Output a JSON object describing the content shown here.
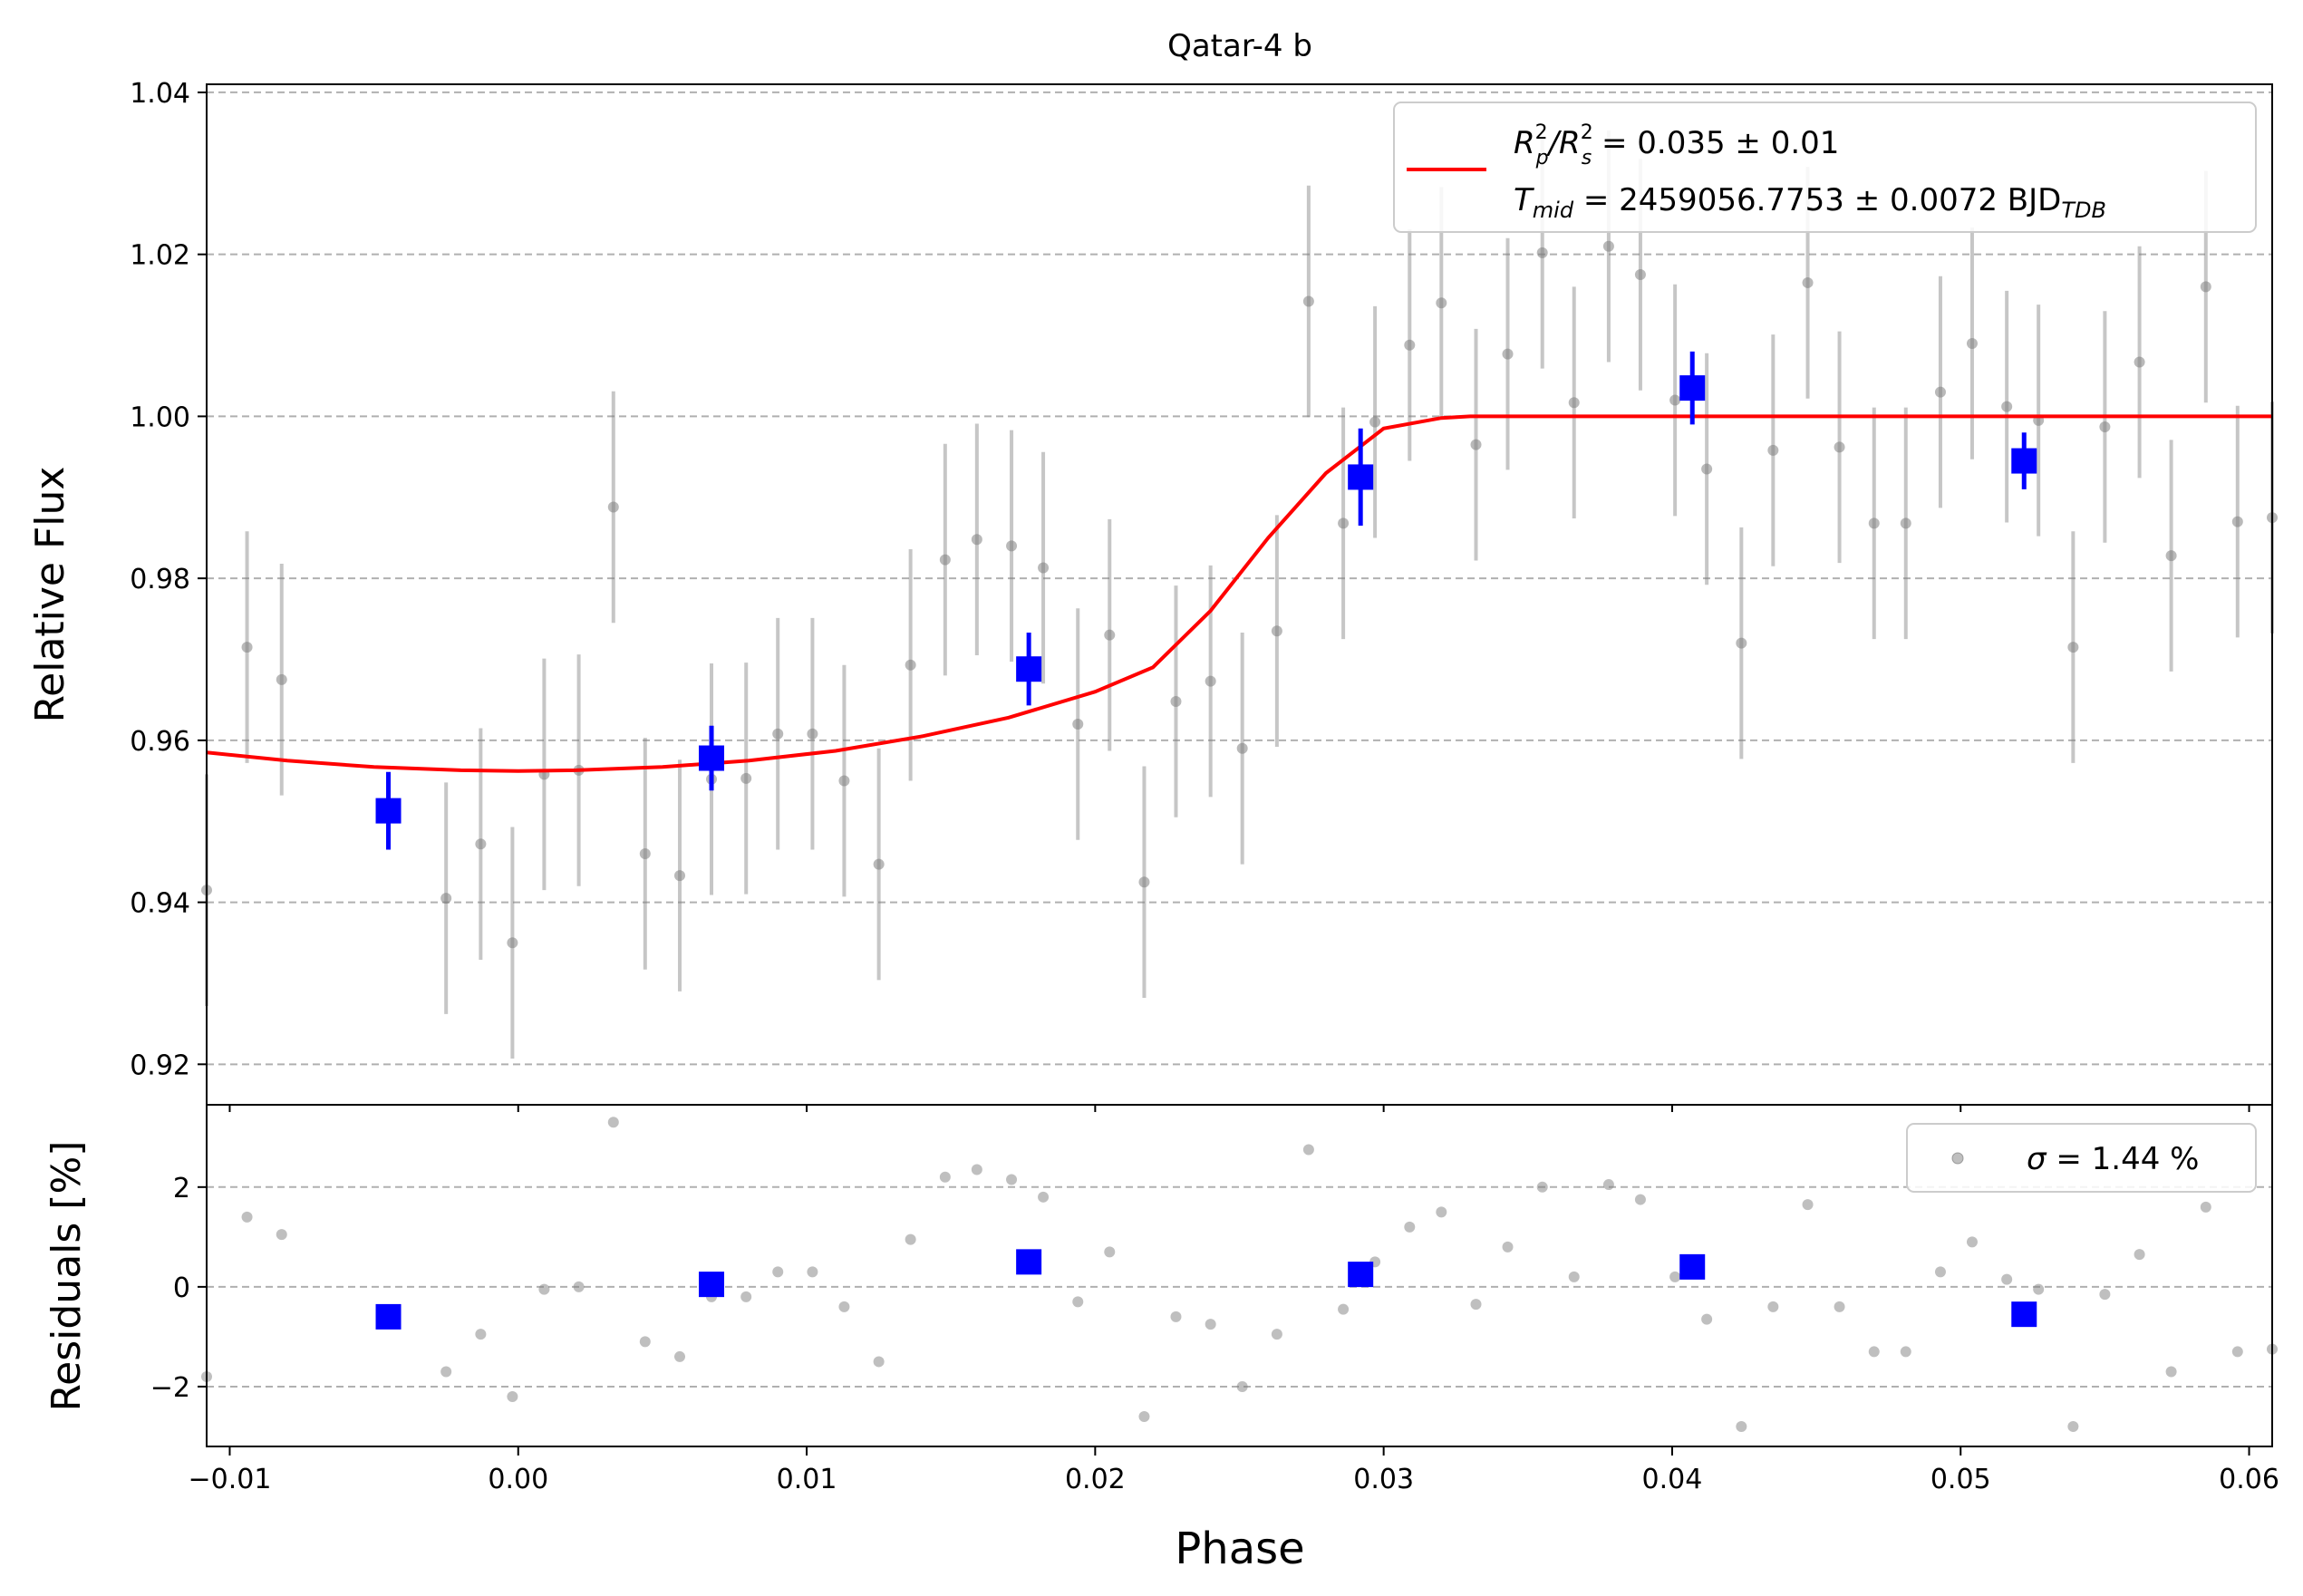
{
  "chart_data": [
    {
      "type": "scatter",
      "title": "Qatar-4 b",
      "xlabel": "Phase",
      "ylabel": "Relative Flux",
      "xlim": [
        -0.0108,
        0.0608
      ],
      "ylim": [
        0.915,
        1.041
      ],
      "grid": "horizontal dashed",
      "legend_position": "top-right",
      "x_ticks": [
        -0.01,
        0.0,
        0.01,
        0.02,
        0.03,
        0.04,
        0.05,
        0.06
      ],
      "x_tick_labels": [
        "−0.01",
        "0.00",
        "0.01",
        "0.02",
        "0.03",
        "0.04",
        "0.05",
        "0.06"
      ],
      "y_ticks": [
        0.92,
        0.94,
        0.96,
        0.98,
        1.0,
        1.02,
        1.04
      ],
      "y_tick_labels": [
        "0.92",
        "0.94",
        "0.96",
        "0.98",
        "1.00",
        "1.02",
        "1.04"
      ],
      "legend": {
        "line1_prefix": "R",
        "line1_sup1": "2",
        "line1_sub1": "p",
        "line1_mid": "/R",
        "line1_sup2": "2",
        "line1_sub2": "s",
        "line1_suffix": " = 0.035 ± 0.01",
        "line2_prefix": "T",
        "line2_sub": "mid",
        "line2_suffix": " = 2459056.7753 ± 0.0072 BJD",
        "line2_sub2": "TDB"
      },
      "series": [
        {
          "role": "data",
          "color": "#808080",
          "x": [
            -0.0108,
            -0.0094,
            -0.0082,
            -0.0025,
            -0.0013,
            -0.0002,
            0.0009,
            0.0021,
            0.0033,
            0.0044,
            0.0056,
            0.0067,
            0.0079,
            0.009,
            0.0102,
            0.0113,
            0.0125,
            0.0136,
            0.0148,
            0.0159,
            0.0171,
            0.0182,
            0.0194,
            0.0205,
            0.0217,
            0.0228,
            0.024,
            0.0251,
            0.0263,
            0.0274,
            0.0286,
            0.0297,
            0.0309,
            0.032,
            0.0332,
            0.0343,
            0.0355,
            0.0366,
            0.0378,
            0.0389,
            0.0401,
            0.0412,
            0.0424,
            0.0435,
            0.0447,
            0.0458,
            0.047,
            0.0481,
            0.0493,
            0.0504,
            0.0516,
            0.0527,
            0.0539,
            0.055,
            0.0562,
            0.0573,
            0.0585,
            0.0596,
            0.0608
          ],
          "y": [
            0.9415,
            0.9715,
            0.9675,
            0.9405,
            0.9472,
            0.935,
            0.9558,
            0.9563,
            0.9888,
            0.946,
            0.9433,
            0.9552,
            0.9553,
            0.9608,
            0.9608,
            0.955,
            0.9447,
            0.9693,
            0.9823,
            0.9848,
            0.984,
            0.9813,
            0.962,
            0.973,
            0.9425,
            0.9648,
            0.9673,
            0.959,
            0.9735,
            1.0142,
            0.9868,
            0.9993,
            1.0088,
            1.014,
            0.9965,
            1.0077,
            1.0202,
            1.0017,
            1.021,
            1.0175,
            1.002,
            0.9935,
            0.972,
            0.9958,
            1.0165,
            0.9962,
            0.9868,
            0.9868,
            1.003,
            1.009,
            1.0012,
            0.9995,
            0.9715,
            0.9987,
            1.0067,
            0.9828,
            1.016,
            0.987,
            0.9875
          ],
          "yerr": 0.0143
        },
        {
          "role": "binned",
          "color": "#0000ff",
          "x": [
            -0.0045,
            0.0067,
            0.0177,
            0.0292,
            0.0407,
            0.0522
          ],
          "y": [
            0.9513,
            0.9578,
            0.9688,
            0.9925,
            1.0035,
            0.9945
          ],
          "yerr": [
            0.0048,
            0.004,
            0.0045,
            0.006,
            0.0045,
            0.0035
          ]
        },
        {
          "role": "model",
          "color": "#ff0000",
          "x": [
            -0.0108,
            -0.008,
            -0.005,
            -0.002,
            0.0,
            0.002,
            0.005,
            0.008,
            0.011,
            0.014,
            0.017,
            0.02,
            0.022,
            0.024,
            0.026,
            0.028,
            0.03,
            0.032,
            0.033,
            0.0608
          ],
          "y": [
            0.9585,
            0.9575,
            0.9567,
            0.9563,
            0.9562,
            0.9563,
            0.9567,
            0.9575,
            0.9587,
            0.9605,
            0.9628,
            0.966,
            0.969,
            0.976,
            0.985,
            0.993,
            0.9985,
            0.9998,
            1.0,
            1.0
          ]
        }
      ]
    },
    {
      "type": "scatter",
      "xlabel": "Phase",
      "ylabel": "Residuals [%]",
      "xlim": [
        -0.0108,
        0.0608
      ],
      "ylim": [
        -3.2,
        3.65
      ],
      "grid": "horizontal dashed",
      "legend_position": "top-right",
      "y_ticks": [
        -2,
        0,
        2
      ],
      "y_tick_labels": [
        "−2",
        "0",
        "2"
      ],
      "legend": {
        "sigma_symbol": "σ",
        "sigma_text": " = 1.44 %"
      },
      "series": [
        {
          "role": "residuals",
          "color": "#808080",
          "x": [
            -0.0108,
            -0.0094,
            -0.0082,
            -0.0025,
            -0.0013,
            -0.0002,
            0.0009,
            0.0021,
            0.0033,
            0.0044,
            0.0056,
            0.0067,
            0.0079,
            0.009,
            0.0102,
            0.0113,
            0.0125,
            0.0136,
            0.0148,
            0.0159,
            0.0171,
            0.0182,
            0.0194,
            0.0205,
            0.0217,
            0.0228,
            0.024,
            0.0251,
            0.0263,
            0.0274,
            0.0286,
            0.0297,
            0.0309,
            0.032,
            0.0332,
            0.0343,
            0.0355,
            0.0366,
            0.0378,
            0.0389,
            0.0401,
            0.0412,
            0.0424,
            0.0435,
            0.0447,
            0.0458,
            0.047,
            0.0481,
            0.0493,
            0.0504,
            0.0516,
            0.0527,
            0.0539,
            0.055,
            0.0562,
            0.0573,
            0.0585,
            0.0596,
            0.0608
          ],
          "y": [
            -1.8,
            1.4,
            1.05,
            -1.7,
            -0.95,
            -2.2,
            -0.05,
            0.0,
            3.3,
            -1.1,
            -1.4,
            -0.2,
            -0.2,
            0.3,
            0.3,
            -0.4,
            -1.5,
            0.95,
            2.2,
            2.35,
            2.15,
            1.8,
            -0.3,
            0.7,
            -2.6,
            -0.6,
            -0.75,
            -2.0,
            -0.95,
            2.75,
            -0.45,
            0.5,
            1.2,
            1.5,
            -0.35,
            0.8,
            2.0,
            0.2,
            2.05,
            1.75,
            0.2,
            -0.65,
            -2.8,
            -0.4,
            1.65,
            -0.4,
            -1.3,
            -1.3,
            0.3,
            0.9,
            0.15,
            -0.05,
            -2.8,
            -0.15,
            0.65,
            -1.7,
            1.6,
            -1.3,
            -1.25
          ]
        },
        {
          "role": "binned",
          "color": "#0000ff",
          "x": [
            -0.0045,
            0.0067,
            0.0177,
            0.0292,
            0.0407,
            0.0522
          ],
          "y": [
            -0.6,
            0.05,
            0.5,
            0.25,
            0.4,
            -0.55
          ]
        }
      ]
    }
  ]
}
